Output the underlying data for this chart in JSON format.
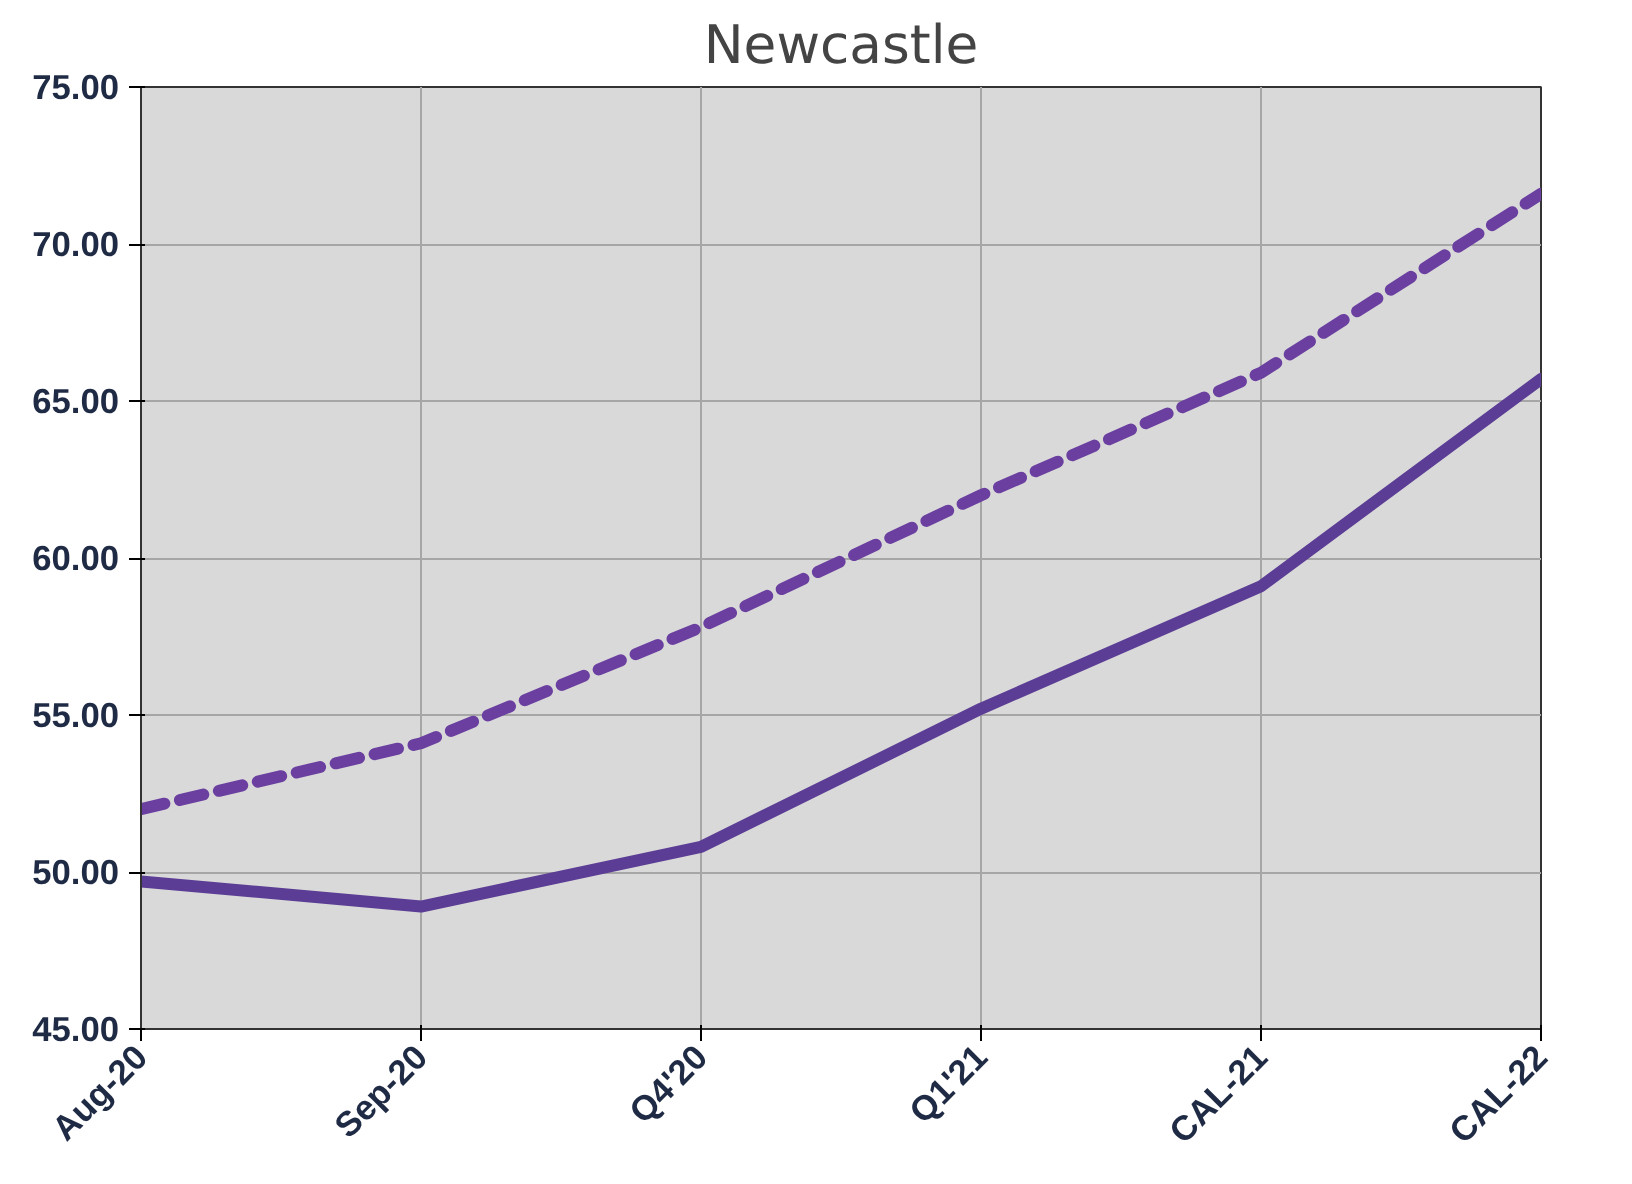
{
  "chart_data": {
    "type": "line",
    "title": "Newcastle",
    "categories": [
      "Aug-20",
      "Sep-20",
      "Q4'20",
      "Q1'21",
      "CAL-21",
      "CAL-22"
    ],
    "series": [
      {
        "color": "#5b3d95",
        "line_style": "solid",
        "values": [
          49.7,
          48.9,
          50.8,
          55.2,
          59.1,
          65.7
        ]
      },
      {
        "color": "#6a3fa0",
        "line_style": "dashed",
        "values": [
          52.0,
          54.1,
          57.8,
          62.0,
          65.9,
          71.6
        ]
      }
    ],
    "ylim": [
      45,
      75
    ],
    "yticks": [
      {
        "value": 45,
        "label": "45.00"
      },
      {
        "value": 50,
        "label": "50.00"
      },
      {
        "value": 55,
        "label": "55.00"
      },
      {
        "value": 60,
        "label": "60.00"
      },
      {
        "value": 65,
        "label": "65.00"
      },
      {
        "value": 70,
        "label": "70.00"
      },
      {
        "value": 75,
        "label": "75.00"
      }
    ],
    "grid": true,
    "marker": "none"
  }
}
